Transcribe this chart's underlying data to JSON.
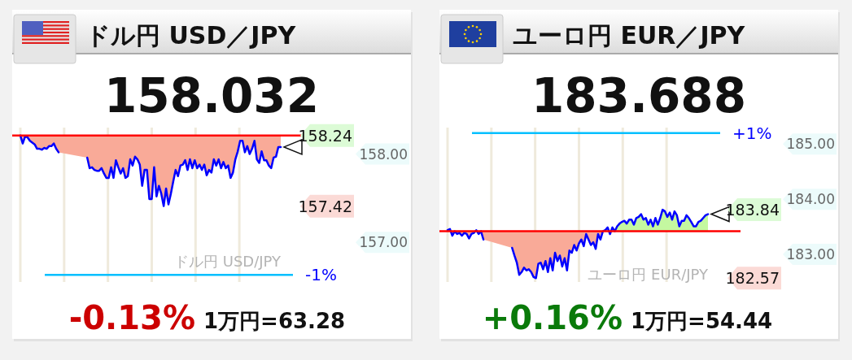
{
  "chart_data": [
    {
      "type": "line",
      "title": "ドル円 USD／JPY",
      "subtitle": "158.032",
      "color": "#0000ff",
      "tick_labels": "y",
      "grid": "x",
      "ylim": [
        156.55,
        158.3
      ],
      "yticks": [
        {
          "value": 157,
          "label": "157.00"
        },
        {
          "value": 158,
          "label": "158.00"
        }
      ],
      "categories": [
        null,
        null,
        null,
        null,
        null,
        null,
        null,
        null,
        null,
        null,
        null,
        null,
        null,
        null,
        null,
        null,
        null,
        null,
        null,
        null,
        null,
        null,
        null,
        null,
        null,
        null,
        null,
        null,
        null,
        null,
        null,
        null,
        null,
        null,
        null,
        null,
        null,
        null,
        null,
        null,
        null,
        null,
        null,
        null,
        null,
        null,
        null,
        null,
        null,
        null,
        null,
        null,
        null,
        null,
        null,
        null,
        null,
        null,
        null,
        null,
        null,
        null,
        null,
        null,
        null,
        null,
        null,
        null,
        null,
        null,
        null,
        null,
        null,
        null,
        null,
        null,
        null,
        null,
        null,
        null,
        null,
        null,
        null,
        null,
        null,
        null,
        null,
        null,
        null,
        null,
        null,
        null,
        null,
        null,
        null,
        null,
        null,
        null,
        null,
        null,
        null,
        null,
        null,
        null,
        null,
        null,
        null,
        null,
        null,
        null
      ],
      "values": [
        158.21,
        158.12,
        158.2,
        158.19,
        158.15,
        158.13,
        158.11,
        158.06,
        158.06,
        158.05,
        158.07,
        158.06,
        158.09,
        158.09,
        158.12,
        158.06,
        158.02,
        null,
        null,
        null,
        null,
        null,
        null,
        null,
        null,
        null,
        null,
        null,
        157.96,
        157.84,
        157.85,
        157.82,
        157.81,
        157.81,
        157.84,
        157.78,
        157.73,
        157.73,
        157.85,
        157.73,
        157.93,
        157.85,
        157.78,
        157.84,
        157.73,
        157.75,
        157.94,
        157.87,
        157.97,
        157.94,
        157.88,
        157.64,
        157.82,
        157.82,
        157.49,
        157.49,
        157.85,
        157.52,
        157.64,
        157.55,
        157.41,
        157.61,
        157.43,
        157.55,
        157.69,
        157.82,
        157.75,
        157.87,
        157.88,
        157.93,
        157.82,
        157.94,
        157.84,
        157.93,
        157.84,
        157.88,
        157.82,
        157.88,
        157.76,
        157.82,
        157.79,
        157.94,
        157.87,
        157.94,
        157.84,
        157.91,
        157.84,
        157.87,
        157.73,
        157.79,
        157.94,
        158.03,
        158.15,
        158.15,
        158.02,
        158.09,
        158.0,
        158.06,
        158.15,
        157.94,
        157.9,
        158.03,
        157.93,
        157.93,
        157.87,
        157.84,
        157.96,
        157.97,
        158.08,
        158.08
      ],
      "ref_lines": [
        {
          "axis": "y",
          "value": 158.21,
          "color": "#ff0000"
        },
        {
          "axis": "y",
          "value": 156.63,
          "color": "#00bfff"
        }
      ],
      "annotations": [
        "ドル円 USD/JPY",
        "-0.13%",
        "1万円=63.28",
        "158.24",
        "157.42",
        "-1%"
      ]
    },
    {
      "type": "line",
      "title": "ユーロ円 EUR／JPY",
      "subtitle": "183.688",
      "color": "#0000ff",
      "tick_labels": "y",
      "grid": "x",
      "ylim": [
        182.5,
        185.3
      ],
      "yticks": [
        {
          "value": 183,
          "label": "183.00"
        },
        {
          "value": 184,
          "label": "184.00"
        },
        {
          "value": 185,
          "label": "185.00"
        }
      ],
      "categories": [
        null,
        null,
        null,
        null,
        null,
        null,
        null,
        null,
        null,
        null,
        null,
        null,
        null,
        null,
        null,
        null,
        null,
        null,
        null,
        null,
        null,
        null,
        null,
        null,
        null,
        null,
        null,
        null,
        null,
        null,
        null,
        null,
        null,
        null,
        null,
        null,
        null,
        null,
        null,
        null,
        null,
        null,
        null,
        null,
        null,
        null,
        null,
        null,
        null,
        null,
        null,
        null,
        null,
        null,
        null,
        null,
        null,
        null,
        null,
        null,
        null,
        null,
        null,
        null,
        null,
        null,
        null,
        null,
        null,
        null,
        null,
        null,
        null,
        null,
        null,
        null,
        null,
        null,
        null,
        null,
        null,
        null,
        null,
        null,
        null,
        null,
        null,
        null,
        null,
        null,
        null,
        null,
        null,
        null,
        null,
        null,
        null,
        null,
        null,
        null,
        null,
        null,
        null,
        null,
        null,
        null,
        null,
        null,
        null,
        null
      ],
      "values": [
        183.44,
        183.46,
        183.34,
        183.42,
        183.37,
        183.39,
        183.34,
        183.39,
        183.37,
        183.29,
        183.37,
        183.39,
        183.44,
        183.37,
        183.42,
        183.27,
        null,
        null,
        null,
        null,
        null,
        null,
        null,
        null,
        null,
        null,
        null,
        183.12,
        182.98,
        182.85,
        182.63,
        182.68,
        182.76,
        182.71,
        182.73,
        182.68,
        182.59,
        182.57,
        182.83,
        182.85,
        182.73,
        182.88,
        182.68,
        182.93,
        182.71,
        183.03,
        182.88,
        182.98,
        182.78,
        182.93,
        182.71,
        183.07,
        183.03,
        183.17,
        183.07,
        183.2,
        183.27,
        183.15,
        183.37,
        183.27,
        183.17,
        183.22,
        183.1,
        183.37,
        183.27,
        183.42,
        183.44,
        183.49,
        183.37,
        183.49,
        183.42,
        183.51,
        183.56,
        183.59,
        183.61,
        183.56,
        183.63,
        183.63,
        183.54,
        183.66,
        183.68,
        183.73,
        183.63,
        183.66,
        183.54,
        183.63,
        183.51,
        183.66,
        183.54,
        183.66,
        183.81,
        183.78,
        183.68,
        183.76,
        183.63,
        183.78,
        183.71,
        183.51,
        183.61,
        183.61,
        183.71,
        183.66,
        183.59,
        183.51,
        183.51,
        183.59,
        183.61,
        183.66,
        183.71,
        183.73
      ],
      "ref_lines": [
        {
          "axis": "y",
          "value": 183.42,
          "color": "#ff0000"
        },
        {
          "axis": "y",
          "value": 185.2,
          "color": "#00bfff"
        }
      ],
      "annotations": [
        "ユーロ円 EUR/JPY",
        "+0.16%",
        "1万円=54.44",
        "183.84",
        "182.57",
        "+1%"
      ]
    }
  ]
}
